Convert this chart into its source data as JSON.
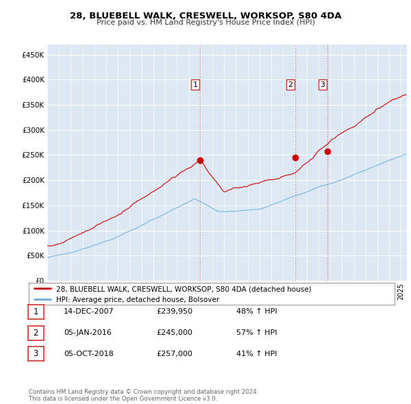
{
  "title": "28, BLUEBELL WALK, CRESWELL, WORKSOP, S80 4DA",
  "subtitle": "Price paid vs. HM Land Registry's House Price Index (HPI)",
  "ylabel_ticks": [
    "£0",
    "£50K",
    "£100K",
    "£150K",
    "£200K",
    "£250K",
    "£300K",
    "£350K",
    "£400K",
    "£450K"
  ],
  "ytick_values": [
    0,
    50000,
    100000,
    150000,
    200000,
    250000,
    300000,
    350000,
    400000,
    450000
  ],
  "ylim": [
    0,
    470000
  ],
  "xlim_start": 1995.0,
  "xlim_end": 2025.5,
  "hpi_color": "#6baed6",
  "price_color": "#cc0000",
  "vline_color": "#e06060",
  "sale_dates": [
    2007.96,
    2016.02,
    2018.76
  ],
  "sale_prices": [
    239950,
    245000,
    257000
  ],
  "sale_labels": [
    "1",
    "2",
    "3"
  ],
  "legend_label_red": "28, BLUEBELL WALK, CRESWELL, WORKSOP, S80 4DA (detached house)",
  "legend_label_blue": "HPI: Average price, detached house, Bolsover",
  "table_data": [
    [
      "1",
      "14-DEC-2007",
      "£239,950",
      "48% ↑ HPI"
    ],
    [
      "2",
      "05-JAN-2016",
      "£245,000",
      "57% ↑ HPI"
    ],
    [
      "3",
      "05-OCT-2018",
      "£257,000",
      "41% ↑ HPI"
    ]
  ],
  "footer": "Contains HM Land Registry data © Crown copyright and database right 2024.\nThis data is licensed under the Open Government Licence v3.0.",
  "background_color": "#ffffff",
  "plot_bg_color": "#dce9f5"
}
